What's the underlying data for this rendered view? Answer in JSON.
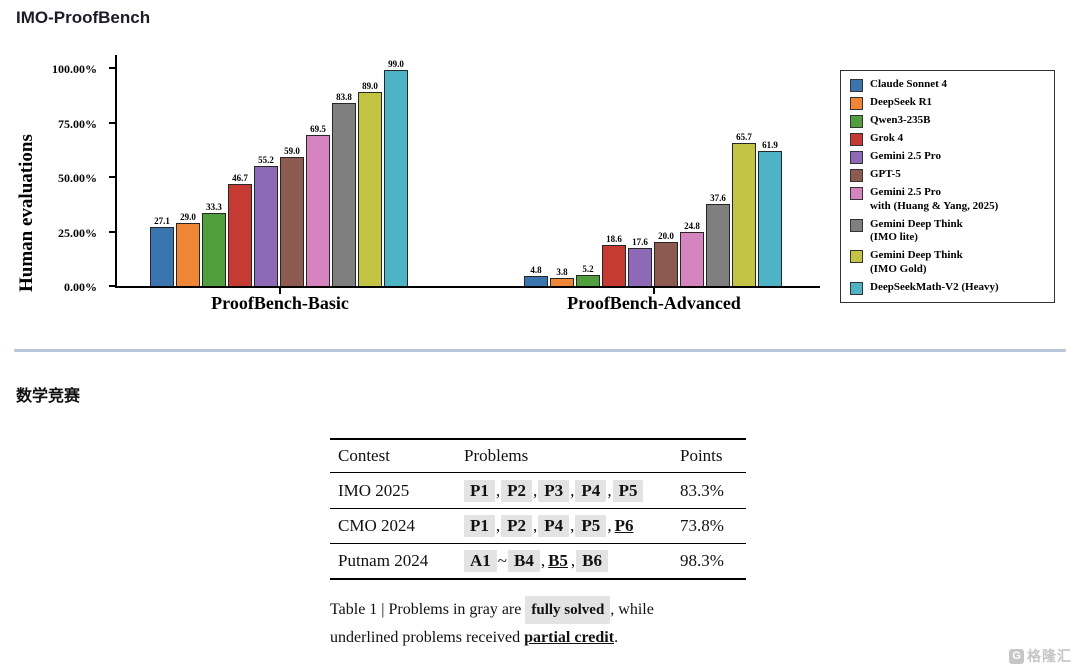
{
  "page": {
    "title": "IMO-ProofBench",
    "section2_title": "数学竞赛"
  },
  "chart_data": {
    "type": "bar",
    "title": "IMO-ProofBench",
    "xlabel": "",
    "ylabel": "Human evaluations",
    "ylim": [
      0,
      105
    ],
    "grid": false,
    "legend_position": "right",
    "yticks": [
      "0.00%",
      "25.00%",
      "50.00%",
      "75.00%",
      "100.00%"
    ],
    "ytick_values": [
      0,
      25,
      50,
      75,
      100
    ],
    "categories": [
      "ProofBench-Basic",
      "ProofBench-Advanced"
    ],
    "series": [
      {
        "name": "Claude Sonnet 4",
        "color": "#3b75af",
        "values": [
          27.1,
          4.8
        ]
      },
      {
        "name": "DeepSeek R1",
        "color": "#ef8636",
        "values": [
          29.0,
          3.8
        ]
      },
      {
        "name": "Qwen3-235B",
        "color": "#519e3e",
        "values": [
          33.3,
          5.2
        ]
      },
      {
        "name": "Grok 4",
        "color": "#c53a32",
        "values": [
          46.7,
          18.6
        ]
      },
      {
        "name": "Gemini 2.5 Pro",
        "color": "#8d69b8",
        "values": [
          55.2,
          17.6
        ]
      },
      {
        "name": "GPT-5",
        "color": "#8c5a4f",
        "values": [
          59.0,
          20.0
        ]
      },
      {
        "name": "Gemini 2.5 Pro\nwith (Huang & Yang, 2025)",
        "color": "#d684c0",
        "values": [
          69.5,
          24.8
        ]
      },
      {
        "name": "Gemini Deep Think\n(IMO lite)",
        "color": "#7f7f7f",
        "values": [
          83.8,
          37.6
        ]
      },
      {
        "name": "Gemini Deep Think\n(IMO Gold)",
        "color": "#c3c444",
        "values": [
          89.0,
          65.7
        ]
      },
      {
        "name": "DeepSeekMath-V2 (Heavy)",
        "color": "#4fb3c6",
        "values": [
          99.0,
          61.9
        ]
      }
    ]
  },
  "table": {
    "headers": [
      "Contest",
      "Problems",
      "Points"
    ],
    "rows": [
      {
        "contest": "IMO 2025",
        "points": "83.3%",
        "problems": [
          {
            "t": "chip",
            "v": "P1"
          },
          {
            "t": "sep",
            "v": ", "
          },
          {
            "t": "chip",
            "v": "P2"
          },
          {
            "t": "sep",
            "v": ", "
          },
          {
            "t": "chip",
            "v": "P3"
          },
          {
            "t": "sep",
            "v": ", "
          },
          {
            "t": "chip",
            "v": "P4"
          },
          {
            "t": "sep",
            "v": ", "
          },
          {
            "t": "chip",
            "v": "P5"
          }
        ]
      },
      {
        "contest": "CMO 2024",
        "points": "73.8%",
        "problems": [
          {
            "t": "chip",
            "v": "P1"
          },
          {
            "t": "sep",
            "v": ", "
          },
          {
            "t": "chip",
            "v": "P2"
          },
          {
            "t": "sep",
            "v": ", "
          },
          {
            "t": "chip",
            "v": "P4"
          },
          {
            "t": "sep",
            "v": ", "
          },
          {
            "t": "chip",
            "v": "P5"
          },
          {
            "t": "sep",
            "v": ", "
          },
          {
            "t": "underline",
            "v": "P6"
          }
        ]
      },
      {
        "contest": "Putnam 2024",
        "points": "98.3%",
        "problems": [
          {
            "t": "chip",
            "v": "A1"
          },
          {
            "t": "sep",
            "v": " ~ "
          },
          {
            "t": "chip",
            "v": "B4"
          },
          {
            "t": "sep",
            "v": ", "
          },
          {
            "t": "underline",
            "v": "B5"
          },
          {
            "t": "sep",
            "v": ", "
          },
          {
            "t": "chip",
            "v": "B6"
          }
        ]
      }
    ],
    "caption": [
      {
        "t": "text",
        "v": "Table 1 | Problems in gray are "
      },
      {
        "t": "chip",
        "v": "fully solved"
      },
      {
        "t": "text",
        "v": ", while\nunderlined problems received "
      },
      {
        "t": "underline",
        "v": "partial credit"
      },
      {
        "t": "text",
        "v": "."
      }
    ]
  },
  "watermark": {
    "icon_letter": "G",
    "text": "格隆汇"
  }
}
